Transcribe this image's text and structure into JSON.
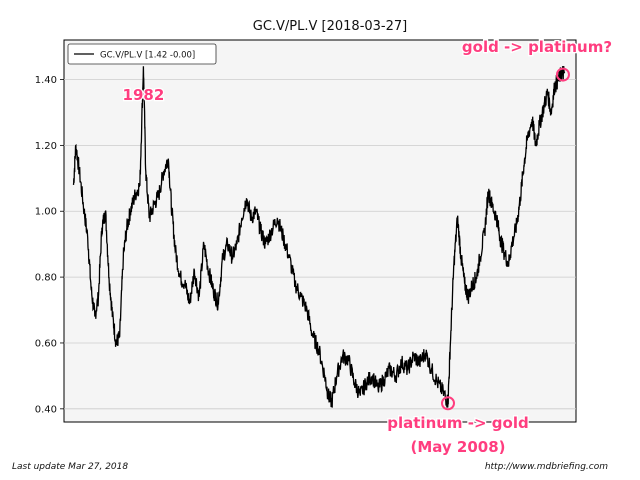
{
  "chart_data": {
    "type": "line",
    "title": "GC.V/PL.V  [2018-03-27]",
    "legend": {
      "label": "GC.V/PL.V [1.42 -0.00]",
      "placement": "top-left"
    },
    "xlabel": "",
    "ylabel": "",
    "ylim": [
      0.36,
      1.52
    ],
    "y_ticks": [
      0.4,
      0.6,
      0.8,
      1.0,
      1.2,
      1.4
    ],
    "y_tick_labels": [
      "0.40",
      "0.60",
      "0.80",
      "1.00",
      "1.20",
      "1.40"
    ],
    "grid": "horizontal",
    "series": [
      {
        "points": [
          [
            1976.8,
            1.08
          ],
          [
            1977.0,
            1.2
          ],
          [
            1977.3,
            1.12
          ],
          [
            1977.7,
            1.0
          ],
          [
            1978.0,
            0.92
          ],
          [
            1978.3,
            0.76
          ],
          [
            1978.6,
            0.68
          ],
          [
            1978.9,
            0.74
          ],
          [
            1979.2,
            0.95
          ],
          [
            1979.5,
            1.0
          ],
          [
            1979.8,
            0.8
          ],
          [
            1980.1,
            0.68
          ],
          [
            1980.4,
            0.6
          ],
          [
            1980.7,
            0.62
          ],
          [
            1981.0,
            0.86
          ],
          [
            1981.3,
            0.95
          ],
          [
            1981.6,
            1.0
          ],
          [
            1982.0,
            1.05
          ],
          [
            1982.4,
            1.08
          ],
          [
            1982.7,
            1.44
          ],
          [
            1982.9,
            1.12
          ],
          [
            1983.2,
            0.98
          ],
          [
            1983.6,
            1.02
          ],
          [
            1984.0,
            1.05
          ],
          [
            1984.4,
            1.12
          ],
          [
            1984.8,
            1.16
          ],
          [
            1985.1,
            1.0
          ],
          [
            1985.4,
            0.88
          ],
          [
            1985.8,
            0.8
          ],
          [
            1986.2,
            0.78
          ],
          [
            1986.6,
            0.72
          ],
          [
            1987.0,
            0.82
          ],
          [
            1987.4,
            0.74
          ],
          [
            1987.8,
            0.9
          ],
          [
            1988.2,
            0.82
          ],
          [
            1988.6,
            0.76
          ],
          [
            1989.0,
            0.72
          ],
          [
            1989.4,
            0.86
          ],
          [
            1989.8,
            0.9
          ],
          [
            1990.2,
            0.86
          ],
          [
            1990.6,
            0.9
          ],
          [
            1991.0,
            0.98
          ],
          [
            1991.4,
            1.04
          ],
          [
            1991.8,
            0.98
          ],
          [
            1992.2,
            1.0
          ],
          [
            1992.6,
            0.94
          ],
          [
            1993.0,
            0.9
          ],
          [
            1993.5,
            0.94
          ],
          [
            1994.0,
            0.98
          ],
          [
            1994.5,
            0.92
          ],
          [
            1995.0,
            0.86
          ],
          [
            1995.5,
            0.78
          ],
          [
            1996.0,
            0.74
          ],
          [
            1996.5,
            0.7
          ],
          [
            1997.0,
            0.62
          ],
          [
            1997.5,
            0.58
          ],
          [
            1998.0,
            0.5
          ],
          [
            1998.3,
            0.44
          ],
          [
            1998.6,
            0.42
          ],
          [
            1999.0,
            0.5
          ],
          [
            1999.5,
            0.56
          ],
          [
            2000.0,
            0.55
          ],
          [
            2000.5,
            0.48
          ],
          [
            2001.0,
            0.44
          ],
          [
            2001.5,
            0.48
          ],
          [
            2002.0,
            0.5
          ],
          [
            2002.5,
            0.46
          ],
          [
            2003.0,
            0.49
          ],
          [
            2003.5,
            0.52
          ],
          [
            2004.0,
            0.5
          ],
          [
            2004.5,
            0.54
          ],
          [
            2005.0,
            0.52
          ],
          [
            2005.5,
            0.56
          ],
          [
            2006.0,
            0.54
          ],
          [
            2006.5,
            0.57
          ],
          [
            2007.0,
            0.52
          ],
          [
            2007.5,
            0.48
          ],
          [
            2008.0,
            0.45
          ],
          [
            2008.4,
            0.42
          ],
          [
            2008.6,
            0.6
          ],
          [
            2008.9,
            0.84
          ],
          [
            2009.2,
            0.98
          ],
          [
            2009.5,
            0.86
          ],
          [
            2009.8,
            0.78
          ],
          [
            2010.1,
            0.74
          ],
          [
            2010.5,
            0.78
          ],
          [
            2010.8,
            0.8
          ],
          [
            2011.1,
            0.86
          ],
          [
            2011.5,
            0.94
          ],
          [
            2011.8,
            1.06
          ],
          [
            2012.1,
            1.02
          ],
          [
            2012.5,
            0.98
          ],
          [
            2012.8,
            0.92
          ],
          [
            2013.1,
            0.88
          ],
          [
            2013.5,
            0.84
          ],
          [
            2013.8,
            0.9
          ],
          [
            2014.2,
            0.96
          ],
          [
            2014.5,
            1.04
          ],
          [
            2014.8,
            1.14
          ],
          [
            2015.1,
            1.22
          ],
          [
            2015.5,
            1.28
          ],
          [
            2015.8,
            1.2
          ],
          [
            2016.1,
            1.26
          ],
          [
            2016.5,
            1.32
          ],
          [
            2016.8,
            1.36
          ],
          [
            2017.1,
            1.3
          ],
          [
            2017.4,
            1.38
          ],
          [
            2017.7,
            1.4
          ],
          [
            2018.0,
            1.42
          ],
          [
            2018.24,
            1.42
          ]
        ]
      }
    ],
    "annotations": [
      {
        "text": "1982",
        "x": 1982.7,
        "y": 1.44
      },
      {
        "text": "gold -> platinum?",
        "x": 2018.1,
        "y": 1.415
      },
      {
        "text": "platinum -> gold",
        "x": 2008.4,
        "y": 0.42
      },
      {
        "text": "(May 2008)"
      }
    ]
  },
  "footer": {
    "left": "Last update Mar 27, 2018",
    "right": "http://www.mdbriefing.com"
  },
  "colors": {
    "plot_bg": "#f5f5f5",
    "line": "#000000",
    "annotation": "#ff3d7f",
    "grid": "#cccccc"
  }
}
